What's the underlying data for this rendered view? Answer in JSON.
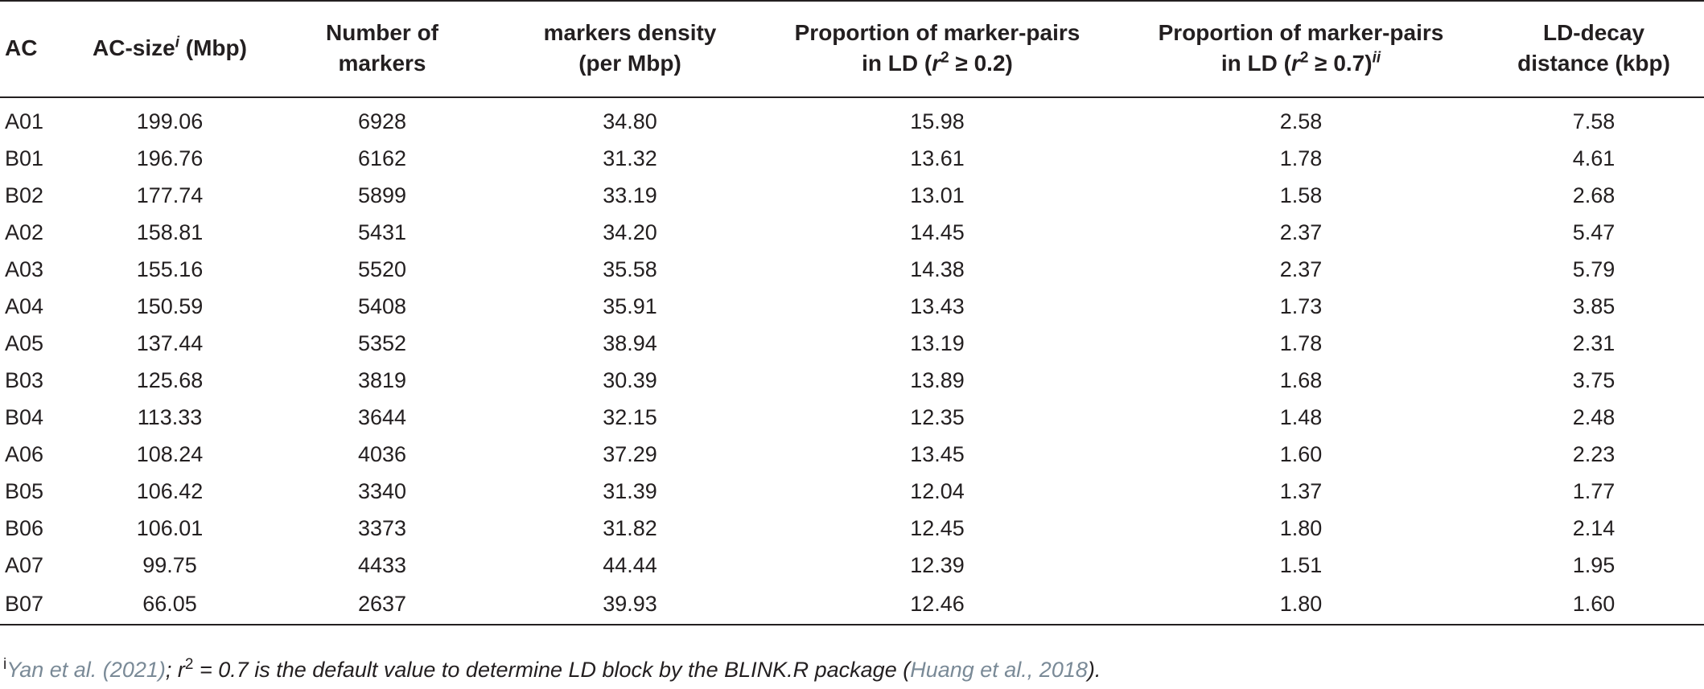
{
  "header": {
    "ac": "AC",
    "size_pre": "AC-size",
    "size_sup": "i",
    "size_post": " (Mbp)",
    "num_line1": "Number of",
    "num_line2": "markers",
    "dens_line1": "markers density",
    "dens_line2": "(per Mbp)",
    "p1_line1": "Proportion of marker-pairs",
    "p1_pre": "in LD (",
    "p1_r": "r",
    "p1_exp": "2",
    "p1_post": " ≥ 0.2)",
    "p2_line1": "Proportion of marker-pairs",
    "p2_pre": "in LD (",
    "p2_r": "r",
    "p2_exp": "2",
    "p2_post": " ≥ 0.7)",
    "p2_sup": "ii",
    "ld_line1": "LD-decay",
    "ld_line2": "distance (kbp)"
  },
  "rows": [
    {
      "ac": "A01",
      "size": "199.06",
      "num": "6928",
      "dens": "34.80",
      "p1": "15.98",
      "p2": "2.58",
      "ld": "7.58"
    },
    {
      "ac": "B01",
      "size": "196.76",
      "num": "6162",
      "dens": "31.32",
      "p1": "13.61",
      "p2": "1.78",
      "ld": "4.61"
    },
    {
      "ac": "B02",
      "size": "177.74",
      "num": "5899",
      "dens": "33.19",
      "p1": "13.01",
      "p2": "1.58",
      "ld": "2.68"
    },
    {
      "ac": "A02",
      "size": "158.81",
      "num": "5431",
      "dens": "34.20",
      "p1": "14.45",
      "p2": "2.37",
      "ld": "5.47"
    },
    {
      "ac": "A03",
      "size": "155.16",
      "num": "5520",
      "dens": "35.58",
      "p1": "14.38",
      "p2": "2.37",
      "ld": "5.79"
    },
    {
      "ac": "A04",
      "size": "150.59",
      "num": "5408",
      "dens": "35.91",
      "p1": "13.43",
      "p2": "1.73",
      "ld": "3.85"
    },
    {
      "ac": "A05",
      "size": "137.44",
      "num": "5352",
      "dens": "38.94",
      "p1": "13.19",
      "p2": "1.78",
      "ld": "2.31"
    },
    {
      "ac": "B03",
      "size": "125.68",
      "num": "3819",
      "dens": "30.39",
      "p1": "13.89",
      "p2": "1.68",
      "ld": "3.75"
    },
    {
      "ac": "B04",
      "size": "113.33",
      "num": "3644",
      "dens": "32.15",
      "p1": "12.35",
      "p2": "1.48",
      "ld": "2.48"
    },
    {
      "ac": "A06",
      "size": "108.24",
      "num": "4036",
      "dens": "37.29",
      "p1": "13.45",
      "p2": "1.60",
      "ld": "2.23"
    },
    {
      "ac": "B05",
      "size": "106.42",
      "num": "3340",
      "dens": "31.39",
      "p1": "12.04",
      "p2": "1.37",
      "ld": "1.77"
    },
    {
      "ac": "B06",
      "size": "106.01",
      "num": "3373",
      "dens": "31.82",
      "p1": "12.45",
      "p2": "1.80",
      "ld": "2.14"
    },
    {
      "ac": "A07",
      "size": "99.75",
      "num": "4433",
      "dens": "44.44",
      "p1": "12.39",
      "p2": "1.51",
      "ld": "1.95"
    },
    {
      "ac": "B07",
      "size": "66.05",
      "num": "2637",
      "dens": "39.93",
      "p1": "12.46",
      "p2": "1.80",
      "ld": "1.60"
    }
  ],
  "footnote": {
    "mark": "i",
    "ref1": "Yan et al. (2021)",
    "mid_pre": "; ",
    "r": "r",
    "exp": "2",
    "mid_post": " = 0.7 is the default value to determine LD block by the BLINK.R package (",
    "ref2": "Huang et al., 2018",
    "end": ")."
  }
}
